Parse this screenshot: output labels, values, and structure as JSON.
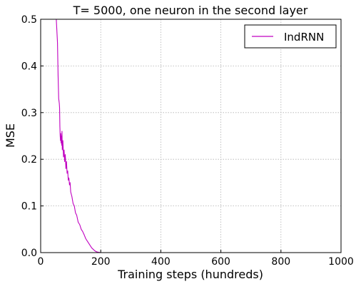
{
  "chart_data": {
    "type": "line",
    "title": "T= 5000, one neuron in the second layer",
    "xlabel": "Training steps (hundreds)",
    "ylabel": "MSE",
    "xlim": [
      0,
      1000
    ],
    "ylim": [
      0.0,
      0.5
    ],
    "xticks": [
      0,
      200,
      400,
      600,
      800,
      1000
    ],
    "yticks": [
      0.0,
      0.1,
      0.2,
      0.3,
      0.4,
      0.5
    ],
    "xtick_labels": [
      "0",
      "200",
      "400",
      "600",
      "800",
      "1000"
    ],
    "ytick_labels": [
      "0.0",
      "0.1",
      "0.2",
      "0.3",
      "0.4",
      "0.5"
    ],
    "grid": true,
    "legend_position": "top-right",
    "series": [
      {
        "name": "IndRNN",
        "color": "#c000c0",
        "x": [
          52,
          56,
          58,
          60,
          62,
          63,
          64,
          65,
          66,
          67,
          68,
          69,
          70,
          71,
          72,
          74,
          76,
          78,
          80,
          82,
          84,
          86,
          88,
          90,
          92,
          94,
          96,
          98,
          100,
          104,
          108,
          112,
          116,
          120,
          125,
          130,
          135,
          140,
          145,
          150,
          155,
          160,
          165,
          170,
          175,
          180,
          185,
          190,
          195,
          200,
          210,
          250,
          300,
          400,
          500,
          600,
          700,
          800,
          900,
          1000
        ],
        "values": [
          0.5,
          0.45,
          0.38,
          0.33,
          0.32,
          0.31,
          0.27,
          0.25,
          0.24,
          0.255,
          0.235,
          0.25,
          0.23,
          0.26,
          0.22,
          0.24,
          0.205,
          0.22,
          0.195,
          0.21,
          0.18,
          0.195,
          0.17,
          0.175,
          0.155,
          0.16,
          0.145,
          0.15,
          0.13,
          0.12,
          0.105,
          0.1,
          0.085,
          0.08,
          0.065,
          0.06,
          0.05,
          0.045,
          0.038,
          0.03,
          0.025,
          0.02,
          0.015,
          0.01,
          0.007,
          0.004,
          0.002,
          0.001,
          0.0005,
          0.0,
          0.0,
          0.0,
          0.0,
          0.0,
          0.0,
          0.0,
          0.0,
          0.0,
          0.0,
          0.0
        ]
      }
    ]
  }
}
